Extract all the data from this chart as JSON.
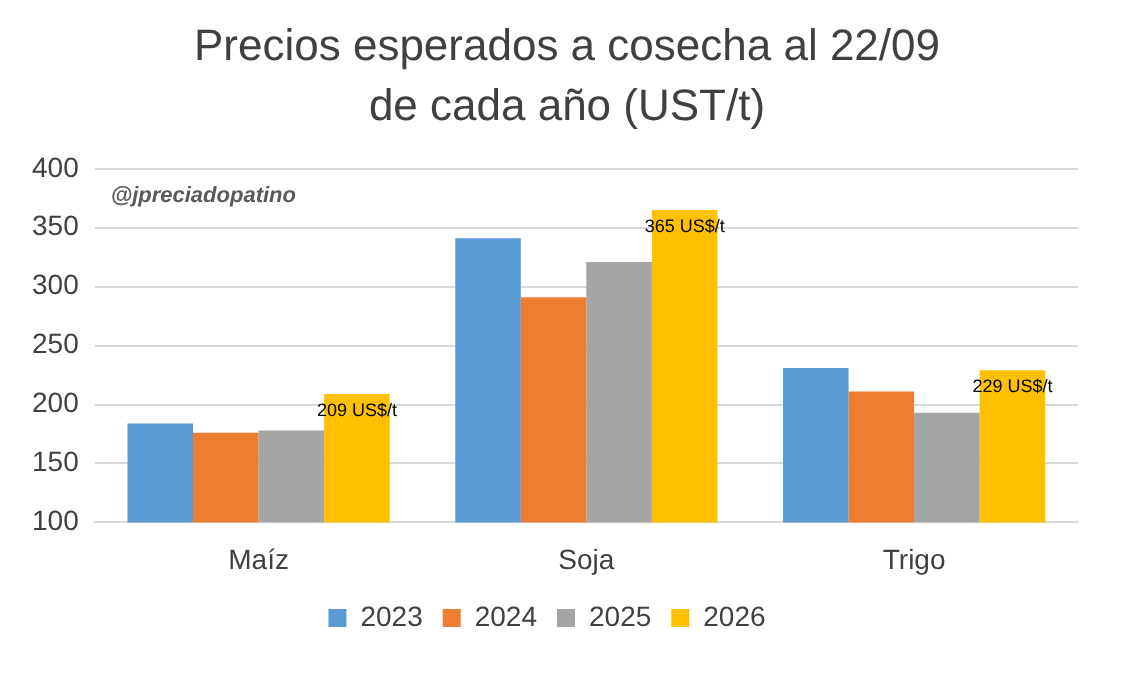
{
  "chart_data": {
    "type": "bar",
    "title": "Precios esperados a cosecha al 22/09 de cada año (UST/t)",
    "categories": [
      "Maíz",
      "Soja",
      "Trigo"
    ],
    "series": [
      {
        "name": "2023",
        "color": "#5b9bd5",
        "values": [
          184,
          341,
          231
        ]
      },
      {
        "name": "2024",
        "color": "#ed7d31",
        "values": [
          176,
          291,
          211
        ]
      },
      {
        "name": "2025",
        "color": "#a5a5a5",
        "values": [
          178,
          321,
          193
        ]
      },
      {
        "name": "2026",
        "color": "#ffc000",
        "values": [
          209,
          365,
          229
        ],
        "value_labels": [
          "209 US$/t",
          "365 US$/t",
          "229 US$/t"
        ]
      }
    ],
    "ylim": [
      100,
      400
    ],
    "yticks": [
      100,
      150,
      200,
      250,
      300,
      350,
      400
    ],
    "grid": "y",
    "legend": "bottom",
    "annotations": [
      "@jpreciadopatino"
    ]
  }
}
